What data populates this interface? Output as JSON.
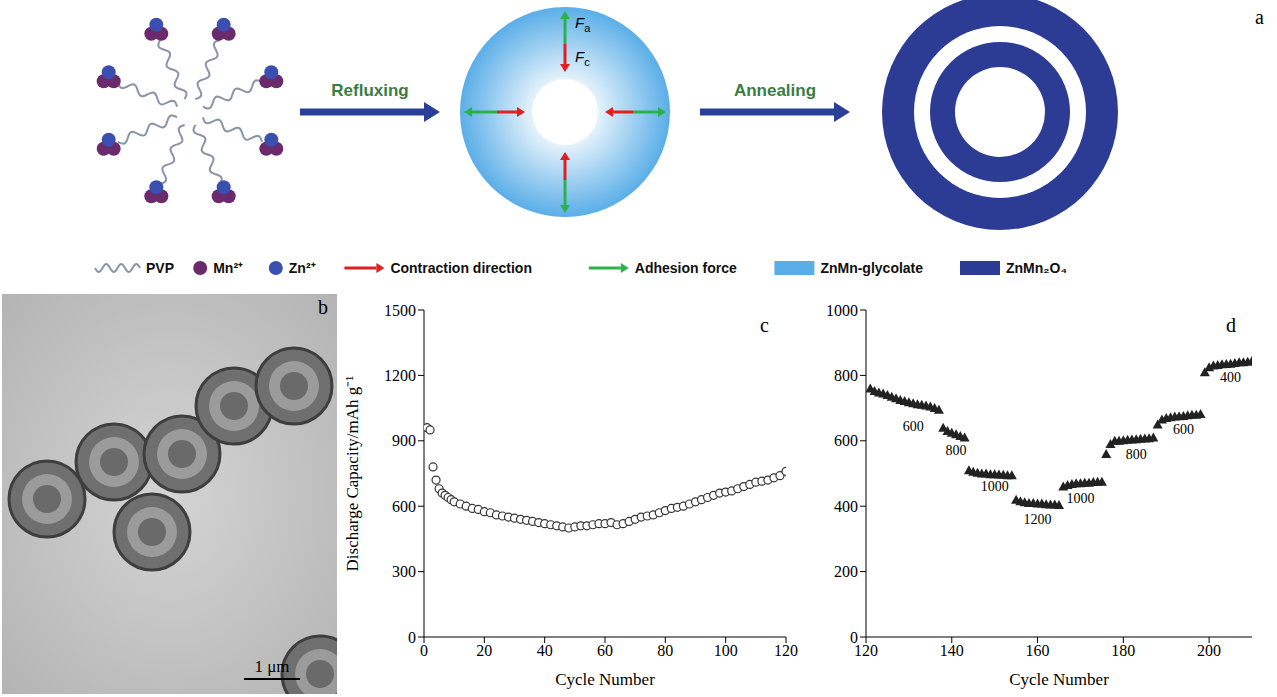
{
  "diagram": {
    "panel": "a",
    "steps": [
      "Refluxing",
      "Annealing"
    ],
    "forces": [
      {
        "symbol": "F",
        "subscript": "a"
      },
      {
        "symbol": "F",
        "subscript": "c"
      }
    ],
    "legend": [
      {
        "label": "PVP",
        "color": "#8a94a8"
      },
      {
        "label": "Mn²⁺",
        "color": "#6b2a6b"
      },
      {
        "label": "Zn²⁺",
        "color": "#3b4fb0"
      },
      {
        "label": "Contraction direction",
        "color": "#e02020"
      },
      {
        "label": "Adhesion force",
        "color": "#2bb34a"
      },
      {
        "label": "ZnMn-glycolate",
        "color": "#5aaee8"
      },
      {
        "label": "ZnMn₂O₄",
        "color": "#2c3b94"
      }
    ]
  },
  "image": {
    "panel": "b",
    "scale_bar": "1 μm"
  },
  "chart_data": [
    {
      "panel": "c",
      "type": "scatter",
      "x_label": "Cycle Number",
      "y_label": "Discharge Capacity/mAh g⁻¹",
      "x": [
        1,
        2,
        3,
        4,
        5,
        6,
        7,
        8,
        9,
        10,
        12,
        14,
        16,
        18,
        20,
        22,
        24,
        26,
        28,
        30,
        32,
        34,
        36,
        38,
        40,
        42,
        44,
        46,
        48,
        50,
        52,
        54,
        56,
        58,
        60,
        62,
        64,
        66,
        68,
        70,
        72,
        74,
        76,
        78,
        80,
        82,
        84,
        86,
        88,
        90,
        92,
        94,
        96,
        98,
        100,
        102,
        104,
        106,
        108,
        110,
        112,
        114,
        116,
        118,
        120
      ],
      "values": [
        960,
        950,
        780,
        720,
        680,
        660,
        650,
        640,
        630,
        620,
        610,
        600,
        590,
        585,
        575,
        570,
        560,
        555,
        550,
        545,
        540,
        535,
        530,
        525,
        520,
        515,
        510,
        505,
        500,
        505,
        510,
        510,
        515,
        520,
        520,
        525,
        515,
        520,
        530,
        540,
        550,
        555,
        560,
        570,
        580,
        590,
        595,
        600,
        610,
        620,
        630,
        640,
        650,
        660,
        665,
        670,
        680,
        690,
        700,
        710,
        715,
        720,
        730,
        740,
        760
      ],
      "marker": "circle_open",
      "color": "#333333",
      "xlim": [
        0,
        120
      ],
      "xticks": [
        0,
        20,
        40,
        60,
        80,
        100,
        120
      ],
      "ylim": [
        0,
        1500
      ],
      "yticks": [
        0,
        300,
        600,
        900,
        1200,
        1500
      ],
      "grid": false
    },
    {
      "panel": "d",
      "type": "scatter",
      "x_label": "Cycle Number",
      "x": [
        121,
        122,
        123,
        124,
        125,
        126,
        127,
        128,
        129,
        130,
        131,
        132,
        133,
        134,
        135,
        136,
        137,
        138,
        139,
        140,
        141,
        142,
        143,
        144,
        145,
        146,
        147,
        148,
        149,
        150,
        151,
        152,
        153,
        154,
        155,
        156,
        157,
        158,
        159,
        160,
        161,
        162,
        163,
        164,
        165,
        166,
        167,
        168,
        169,
        170,
        171,
        172,
        173,
        174,
        175,
        176,
        177,
        178,
        179,
        180,
        181,
        182,
        183,
        184,
        185,
        186,
        187,
        188,
        189,
        190,
        191,
        192,
        193,
        194,
        195,
        196,
        197,
        198,
        199,
        200,
        201,
        202,
        203,
        204,
        205,
        206,
        207,
        208,
        209,
        210
      ],
      "values": [
        760,
        752,
        748,
        745,
        740,
        735,
        730,
        725,
        722,
        718,
        715,
        712,
        710,
        708,
        705,
        700,
        695,
        640,
        630,
        625,
        620,
        615,
        610,
        510,
        505,
        502,
        500,
        500,
        498,
        498,
        497,
        496,
        495,
        495,
        420,
        415,
        412,
        410,
        410,
        408,
        408,
        406,
        405,
        405,
        404,
        460,
        465,
        468,
        470,
        470,
        472,
        472,
        474,
        475,
        475,
        560,
        590,
        600,
        600,
        602,
        603,
        604,
        605,
        606,
        607,
        608,
        610,
        650,
        665,
        670,
        672,
        674,
        675,
        676,
        678,
        680,
        680,
        682,
        810,
        825,
        830,
        832,
        834,
        835,
        836,
        838,
        840,
        840,
        842,
        845
      ],
      "marker": "triangle",
      "color": "#222222",
      "annotations": [
        {
          "text": "600",
          "x": 131,
          "y": 640
        },
        {
          "text": "800",
          "x": 141,
          "y": 565
        },
        {
          "text": "1000",
          "x": 150,
          "y": 455
        },
        {
          "text": "1200",
          "x": 160,
          "y": 355
        },
        {
          "text": "1000",
          "x": 170,
          "y": 420
        },
        {
          "text": "800",
          "x": 183,
          "y": 555
        },
        {
          "text": "600",
          "x": 194,
          "y": 630
        },
        {
          "text": "400",
          "x": 205,
          "y": 790
        }
      ],
      "xlim": [
        120,
        210
      ],
      "xticks": [
        120,
        140,
        160,
        180,
        200
      ],
      "ylim": [
        0,
        1000
      ],
      "yticks": [
        0,
        200,
        400,
        600,
        800,
        1000
      ],
      "grid": false
    }
  ]
}
